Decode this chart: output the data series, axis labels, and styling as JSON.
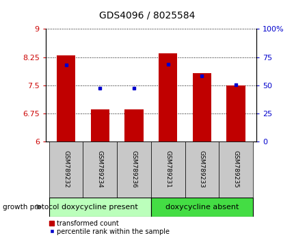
{
  "title": "GDS4096 / 8025584",
  "samples": [
    "GSM789232",
    "GSM789234",
    "GSM789236",
    "GSM789231",
    "GSM789233",
    "GSM789235"
  ],
  "bar_tops": [
    8.3,
    6.85,
    6.86,
    8.35,
    7.82,
    7.5
  ],
  "bar_base": 6.0,
  "blue_y": [
    8.05,
    7.42,
    7.43,
    8.07,
    7.75,
    7.51
  ],
  "ylim_left": [
    6.0,
    9.0
  ],
  "ylim_right": [
    0,
    100
  ],
  "yticks_left": [
    6.0,
    6.75,
    7.5,
    8.25,
    9.0
  ],
  "ytick_labels_left": [
    "6",
    "6.75",
    "7.5",
    "8.25",
    "9"
  ],
  "yticks_right": [
    0,
    25,
    50,
    75,
    100
  ],
  "ytick_labels_right": [
    "0",
    "25",
    "50",
    "75",
    "100%"
  ],
  "bar_color": "#C00000",
  "blue_color": "#0000CC",
  "group1_label": "doxycycline present",
  "group2_label": "doxycycline absent",
  "group1_color": "#BBFFBB",
  "group2_color": "#44DD44",
  "group_bg_color": "#C8C8C8",
  "group1_indices": [
    0,
    1,
    2
  ],
  "group2_indices": [
    3,
    4,
    5
  ],
  "legend_red_label": "transformed count",
  "legend_blue_label": "percentile rank within the sample",
  "growth_protocol_label": "growth protocol",
  "left_tick_color": "#CC0000",
  "right_tick_color": "#0000CC"
}
